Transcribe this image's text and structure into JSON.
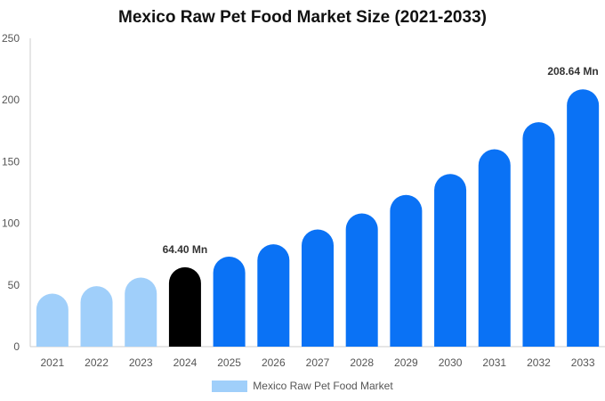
{
  "chart_data": {
    "type": "bar",
    "title": "Mexico Raw Pet Food Market Size (2021-2033)",
    "categories": [
      "2021",
      "2022",
      "2023",
      "2024",
      "2025",
      "2026",
      "2027",
      "2028",
      "2029",
      "2030",
      "2031",
      "2032",
      "2033"
    ],
    "series": [
      {
        "name": "Mexico Raw Pet Food Market",
        "values": [
          43,
          49,
          56,
          64.4,
          73,
          83,
          95,
          108,
          123,
          140,
          160,
          182,
          208.64
        ]
      }
    ],
    "ylim": [
      0,
      250
    ],
    "yticks": [
      0,
      50,
      100,
      150,
      200,
      250
    ],
    "data_labels": [
      {
        "index": 3,
        "text": "64.40 Mn"
      },
      {
        "index": 12,
        "text": "208.64 Mn"
      }
    ],
    "colors": {
      "historical": "#a0cffa",
      "base_year": "#000000",
      "forecast": "#0a72f5",
      "legend": "#a0cffa",
      "axis": "#cccccc"
    },
    "historical_count": 3,
    "base_year_index": 3,
    "legend_position": "bottom",
    "grid": false
  }
}
